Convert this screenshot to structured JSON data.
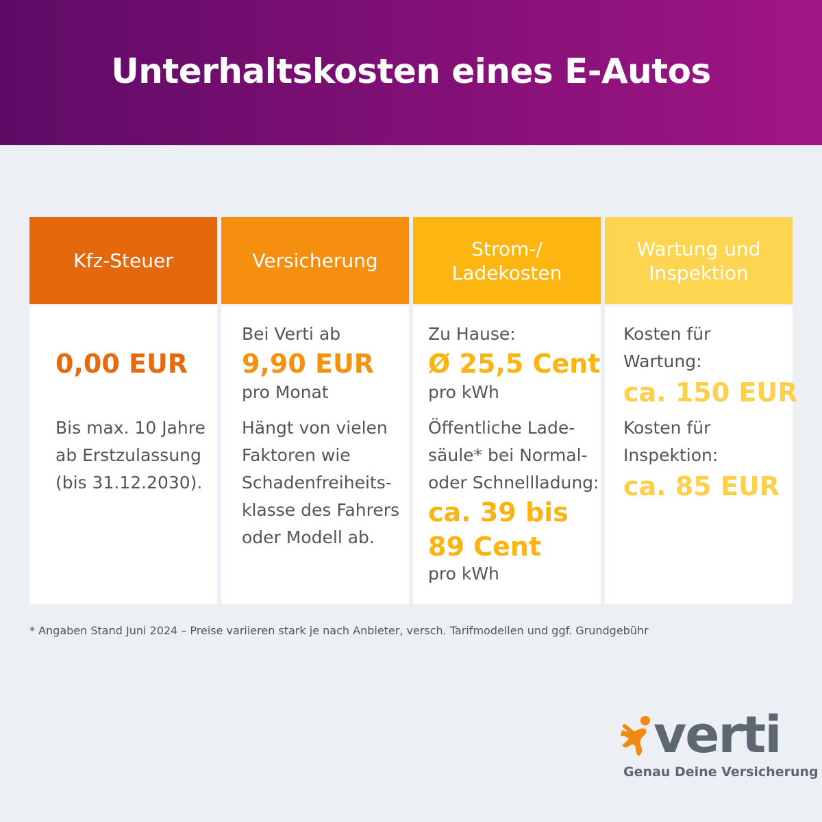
{
  "title": "Unterhaltskosten eines E-Autos",
  "columns": [
    {
      "header": "Kfz-Steuer",
      "amount": "0,00 EUR",
      "note_lines": [
        "Bis max. 10 Jahre",
        "ab Erstzulassung",
        "(bis 31.12.2030)."
      ]
    },
    {
      "header": "Versicherung",
      "intro": "Bei Verti ab",
      "amount": "9,90 EUR",
      "unit": "pro Monat",
      "note_lines": [
        "Hängt von vielen",
        "Faktoren wie",
        "Schadenfreiheits-",
        "klasse des Fahrers",
        "oder Modell ab."
      ]
    },
    {
      "header": "Strom-/\nLadekosten",
      "intro": "Zu Hause:",
      "amount": "Ø 25,5 Cent",
      "unit": "pro kWh",
      "note_lines": [
        "Öffentliche Lade-",
        "säule* bei Normal-",
        "oder Schnellladung:"
      ],
      "amount2_lines": [
        "ca. 39 bis",
        "89 Cent"
      ],
      "unit2": "pro kWh"
    },
    {
      "header": "Wartung und\nInspektion",
      "label1_lines": [
        "Kosten für",
        "Wartung:"
      ],
      "amount": "ca. 150 EUR",
      "label2_lines": [
        "Kosten für",
        "Inspektion:"
      ],
      "amount2": "ca. 85 EUR"
    }
  ],
  "footnote": "* Angaben Stand Juni 2024 – Preise variieren stark je nach Anbieter, versch. Tarifmodellen und ggf. Grundgebühr",
  "logo": {
    "wordmark": "verti",
    "claim": "Genau Deine Versicherung"
  },
  "colors": {
    "header_gradient": [
      "#5e0b66",
      "#a01685"
    ],
    "col1": "#e6680c",
    "col2": "#f68f10",
    "col3": "#fdb611",
    "col4": "#fdd550"
  }
}
